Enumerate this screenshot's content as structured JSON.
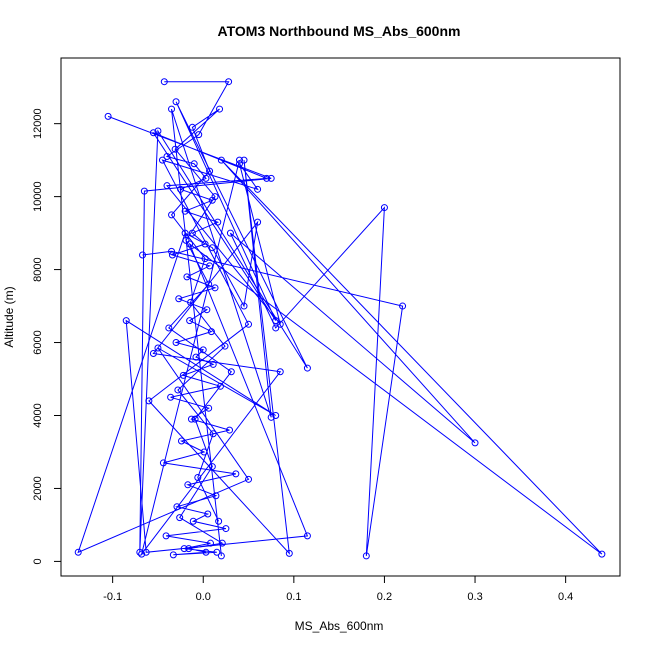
{
  "chart_data": {
    "type": "line",
    "title": "ATOM3 Northbound MS_Abs_600nm",
    "xlabel": "MS_Abs_600nm",
    "ylabel": "Altitude (m)",
    "xlim": [
      -0.157,
      0.46
    ],
    "ylim": [
      -400,
      13800
    ],
    "x_ticks": [
      "-0.1",
      "0.0",
      "0.1",
      "0.2",
      "0.3",
      "0.4"
    ],
    "x_tick_values": [
      -0.1,
      0.0,
      0.1,
      0.2,
      0.3,
      0.4
    ],
    "y_ticks": [
      "0",
      "2000",
      "4000",
      "6000",
      "8000",
      "10000",
      "12000"
    ],
    "y_tick_values": [
      0,
      2000,
      4000,
      6000,
      8000,
      10000,
      12000
    ],
    "grid": false,
    "legend": "none",
    "marker": "open-circle",
    "series_color": "#0000ff",
    "series": [
      {
        "x": [
          -0.043,
          0.028,
          -0.005,
          -0.04,
          -0.01,
          0.003,
          -0.025,
          0.01,
          -0.02,
          0.016,
          -0.012,
          0.002,
          -0.034,
          0.007,
          -0.018,
          0.013,
          -0.027,
          0.004,
          -0.015,
          0.009,
          -0.03,
          0.0,
          -0.008,
          0.011,
          -0.022,
          0.019,
          -0.036,
          0.006,
          -0.013,
          0.029,
          -0.024,
          0.001,
          -0.044,
          0.036,
          -0.017,
          0.014,
          -0.029,
          0.005,
          -0.011,
          0.025,
          -0.041,
          0.008,
          -0.021,
          0.015,
          -0.033,
          0.003,
          -0.016,
          0.021,
          -0.026,
          0.01,
          -0.009,
          0.031,
          -0.038,
          0.006,
          -0.019,
          0.013,
          -0.031,
          0.018,
          -0.012,
          0.007,
          -0.035,
          0.002,
          -0.014,
          0.024,
          -0.028,
          0.011,
          -0.006,
          0.017
        ],
        "y": [
          13150,
          13150,
          11700,
          11100,
          10900,
          10500,
          10200,
          9900,
          9600,
          9300,
          9000,
          8700,
          8400,
          8100,
          7800,
          7500,
          7200,
          6900,
          6600,
          6300,
          6000,
          5800,
          5600,
          5400,
          5100,
          4800,
          4500,
          4200,
          3900,
          3600,
          3300,
          3000,
          2700,
          2400,
          2100,
          1800,
          1500,
          1300,
          1100,
          900,
          700,
          500,
          350,
          250,
          180,
          250,
          350,
          500,
          1200,
          2600,
          3900,
          5200,
          6400,
          7600,
          8800,
          10000,
          11300,
          12400,
          11900,
          10700,
          9500,
          8300,
          7100,
          5900,
          4700,
          3500,
          2300,
          1100
        ]
      },
      {
        "x": [
          -0.105,
          0.075,
          -0.065,
          -0.07,
          -0.05,
          0.115,
          -0.03,
          0.08,
          -0.055,
          0.07,
          -0.04,
          0.085,
          0.04,
          0.06,
          -0.045,
          0.05,
          -0.06,
          0.095,
          0.045,
          0.075,
          -0.035,
          0.02
        ],
        "y": [
          12200,
          10500,
          10150,
          250,
          11800,
          5300,
          12600,
          6600,
          11750,
          10500,
          10300,
          6500,
          10900,
          10200,
          11000,
          6500,
          4400,
          220,
          11000,
          3950,
          12400,
          150
        ]
      },
      {
        "x": [
          -0.067,
          -0.035,
          0.22,
          0.18,
          0.2,
          0.08,
          0.03,
          0.3,
          0.02,
          0.44,
          -0.015,
          0.115,
          -0.063,
          -0.085,
          0.08,
          -0.05,
          0.05,
          -0.138,
          -0.02,
          0.01,
          0.045,
          0.06,
          -0.055,
          0.085,
          -0.068,
          0.04
        ],
        "y": [
          8400,
          8500,
          7000,
          150,
          9700,
          6400,
          9000,
          3250,
          11000,
          200,
          8700,
          700,
          250,
          6600,
          4000,
          5850,
          2250,
          250,
          9000,
          8600,
          7000,
          9300,
          5700,
          5200,
          200,
          11000
        ]
      }
    ]
  }
}
